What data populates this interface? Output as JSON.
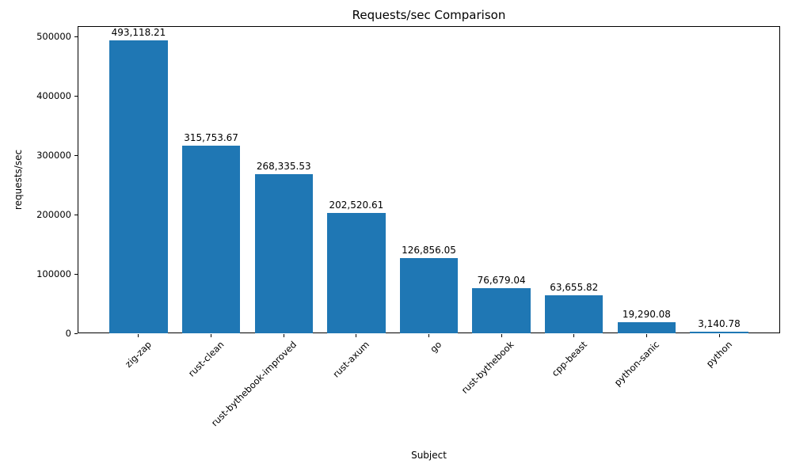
{
  "chart_data": {
    "type": "bar",
    "title": "Requests/sec Comparison",
    "xlabel": "Subject",
    "ylabel": "requests/sec",
    "categories": [
      "zig-zap",
      "rust-clean",
      "rust-bythebook-improved",
      "rust-axum",
      "go",
      "rust-bythebook",
      "cpp-beast",
      "python-sanic",
      "python"
    ],
    "values": [
      493118.21,
      315753.67,
      268335.53,
      202520.61,
      126856.05,
      76679.04,
      63655.82,
      19290.08,
      3140.78
    ],
    "bar_labels": [
      "493,118.21",
      "315,753.67",
      "268,335.53",
      "202,520.61",
      "126,856.05",
      "76,679.04",
      "63,655.82",
      "19,290.08",
      "3,140.78"
    ],
    "yticks": [
      0,
      100000,
      200000,
      300000,
      400000,
      500000
    ],
    "ytick_labels": [
      "0",
      "100000",
      "200000",
      "300000",
      "400000",
      "500000"
    ],
    "ylim": [
      0,
      517774
    ],
    "xlim": [
      -0.84,
      8.84
    ],
    "bar_half_width": 0.4,
    "bar_color": "#1f77b4",
    "axis_color": "#000000",
    "text_color": "#000000",
    "grid": false,
    "legend": "none",
    "x_tick_rotation_deg": 45
  }
}
